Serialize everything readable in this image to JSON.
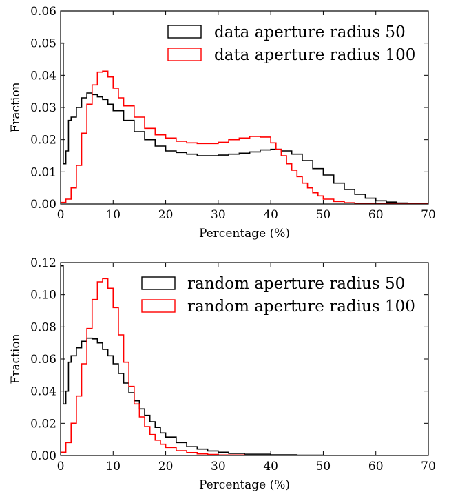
{
  "chart_data": [
    {
      "type": "line",
      "style": "step histogram",
      "xlabel": "Percentage (%)",
      "ylabel": "Fraction",
      "xlim": [
        0,
        70
      ],
      "ylim": [
        0,
        0.06
      ],
      "xticks": [
        "0",
        "10",
        "20",
        "30",
        "40",
        "50",
        "60",
        "70"
      ],
      "yticks": [
        "0.00",
        "0.01",
        "0.02",
        "0.03",
        "0.04",
        "0.05",
        "0.06"
      ],
      "grid": false,
      "legend_position": "top-right",
      "series": [
        {
          "name": "data aperture radius 50",
          "color": "#000000",
          "x": [
            0,
            0.5,
            1,
            1.5,
            2,
            3,
            4,
            5,
            6,
            7,
            8,
            9,
            10,
            12,
            14,
            16,
            18,
            20,
            22,
            24,
            26,
            28,
            30,
            32,
            34,
            36,
            38,
            40,
            42,
            44,
            46,
            48,
            50,
            52,
            54,
            56,
            58,
            60,
            62,
            64,
            66,
            68,
            70
          ],
          "y": [
            0.05,
            0.0125,
            0.0165,
            0.026,
            0.027,
            0.03,
            0.033,
            0.0345,
            0.034,
            0.0333,
            0.0325,
            0.031,
            0.029,
            0.026,
            0.0225,
            0.02,
            0.018,
            0.0165,
            0.016,
            0.0155,
            0.015,
            0.015,
            0.0152,
            0.0155,
            0.0158,
            0.0162,
            0.0168,
            0.017,
            0.0165,
            0.0155,
            0.0135,
            0.011,
            0.009,
            0.0065,
            0.0045,
            0.003,
            0.0018,
            0.001,
            0.0006,
            0.0003,
            0.0001,
            5e-05,
            0
          ]
        },
        {
          "name": "data aperture radius 100",
          "color": "#ff0000",
          "x": [
            0,
            1,
            2,
            3,
            4,
            5,
            6,
            7,
            8,
            9,
            10,
            11,
            12,
            14,
            16,
            18,
            20,
            22,
            24,
            26,
            28,
            30,
            32,
            34,
            36,
            38,
            40,
            41,
            42,
            43,
            44,
            45,
            46,
            47,
            48,
            49,
            50,
            52,
            54,
            56,
            58,
            60,
            70
          ],
          "y": [
            0.0005,
            0.0015,
            0.005,
            0.012,
            0.022,
            0.031,
            0.037,
            0.041,
            0.0413,
            0.0395,
            0.036,
            0.033,
            0.0305,
            0.027,
            0.0235,
            0.0215,
            0.0205,
            0.0195,
            0.019,
            0.0188,
            0.0188,
            0.0192,
            0.02,
            0.0205,
            0.021,
            0.0208,
            0.019,
            0.017,
            0.015,
            0.0125,
            0.0105,
            0.0085,
            0.0065,
            0.005,
            0.0035,
            0.0025,
            0.0015,
            0.0008,
            0.0004,
            0.0002,
            0.0001,
            5e-05,
            0
          ]
        }
      ]
    },
    {
      "type": "line",
      "style": "step histogram",
      "xlabel": "Percentage (%)",
      "ylabel": "Fraction",
      "xlim": [
        0,
        70
      ],
      "ylim": [
        0,
        0.12
      ],
      "xticks": [
        "0",
        "10",
        "20",
        "30",
        "40",
        "50",
        "60",
        "70"
      ],
      "yticks": [
        "0.00",
        "0.02",
        "0.04",
        "0.06",
        "0.08",
        "0.10",
        "0.12"
      ],
      "grid": false,
      "legend_position": "top-right",
      "series": [
        {
          "name": "random aperture radius 50",
          "color": "#000000",
          "x": [
            0,
            0.5,
            1,
            1.5,
            2,
            3,
            4,
            5,
            6,
            7,
            8,
            9,
            10,
            11,
            12,
            13,
            14,
            15,
            16,
            17,
            18,
            19,
            20,
            22,
            24,
            26,
            28,
            30,
            32,
            35,
            40,
            45,
            50,
            60,
            70
          ],
          "y": [
            0.118,
            0.032,
            0.04,
            0.058,
            0.062,
            0.067,
            0.071,
            0.073,
            0.0725,
            0.07,
            0.066,
            0.062,
            0.057,
            0.051,
            0.045,
            0.039,
            0.034,
            0.029,
            0.025,
            0.021,
            0.0175,
            0.014,
            0.0115,
            0.008,
            0.0055,
            0.004,
            0.0028,
            0.002,
            0.0013,
            0.0008,
            0.0004,
            0.0002,
            0.0001,
            5e-05,
            0
          ]
        },
        {
          "name": "random aperture radius 100",
          "color": "#ff0000",
          "x": [
            0,
            1,
            2,
            3,
            4,
            5,
            6,
            7,
            8,
            9,
            10,
            11,
            12,
            13,
            14,
            15,
            16,
            17,
            18,
            19,
            20,
            22,
            24,
            26,
            28,
            30,
            35,
            40,
            50,
            70
          ],
          "y": [
            0.002,
            0.008,
            0.02,
            0.037,
            0.057,
            0.079,
            0.097,
            0.108,
            0.11,
            0.104,
            0.092,
            0.075,
            0.058,
            0.043,
            0.032,
            0.024,
            0.018,
            0.013,
            0.0095,
            0.007,
            0.005,
            0.003,
            0.0018,
            0.001,
            0.0006,
            0.0003,
            0.0001,
            5e-05,
            2e-05,
            0
          ]
        }
      ]
    }
  ]
}
